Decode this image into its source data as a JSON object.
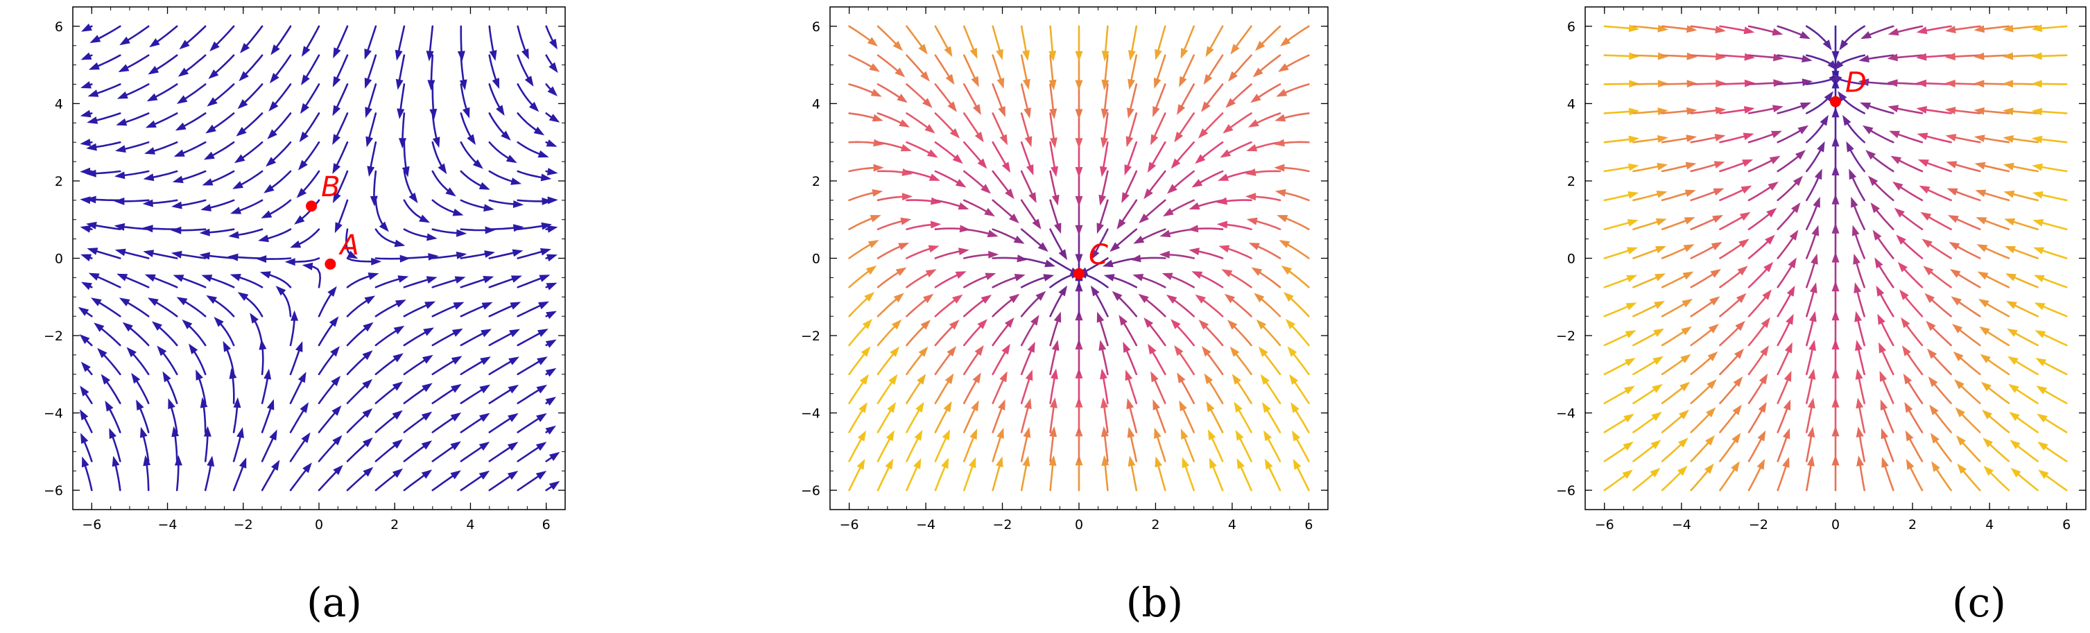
{
  "chart_data": [
    {
      "type": "streamplot",
      "caption": "(a)",
      "xlim": [
        -6.5,
        6.5
      ],
      "ylim": [
        -6.5,
        6.5
      ],
      "xticks": [
        -6,
        -4,
        -2,
        0,
        2,
        4,
        6
      ],
      "yticks": [
        -6,
        -4,
        -2,
        0,
        2,
        4,
        6
      ],
      "color_scheme": "uniform",
      "stream_color": "#2a1aa8",
      "points": [
        {
          "label": "A",
          "x": 0.3,
          "y": -0.15
        },
        {
          "label": "B",
          "x": -0.2,
          "y": 1.35
        }
      ],
      "point_color": "#ff0000"
    },
    {
      "type": "streamplot",
      "caption": "(b)",
      "xlim": [
        -6.5,
        6.5
      ],
      "ylim": [
        -6.5,
        6.5
      ],
      "xticks": [
        -6,
        -4,
        -2,
        0,
        2,
        4,
        6
      ],
      "yticks": [
        -6,
        -4,
        -2,
        0,
        2,
        4,
        6
      ],
      "color_scheme": "magnitude",
      "color_low": "#3a1a9a",
      "color_mid": "#e0457a",
      "color_high": "#f3c21a",
      "points": [
        {
          "label": "C",
          "x": 0.0,
          "y": -0.4
        }
      ],
      "point_color": "#ff0000"
    },
    {
      "type": "streamplot",
      "caption": "(c)",
      "xlim": [
        -6.5,
        6.5
      ],
      "ylim": [
        -6.5,
        6.5
      ],
      "xticks": [
        -6,
        -4,
        -2,
        0,
        2,
        4,
        6
      ],
      "yticks": [
        -6,
        -4,
        -2,
        0,
        2,
        4,
        6
      ],
      "color_scheme": "magnitude",
      "color_low": "#2a1aa8",
      "color_mid": "#e0457a",
      "color_high": "#f3c21a",
      "points": [
        {
          "label": "D",
          "x": 0.0,
          "y": 4.05
        }
      ],
      "point_color": "#ff0000"
    }
  ]
}
